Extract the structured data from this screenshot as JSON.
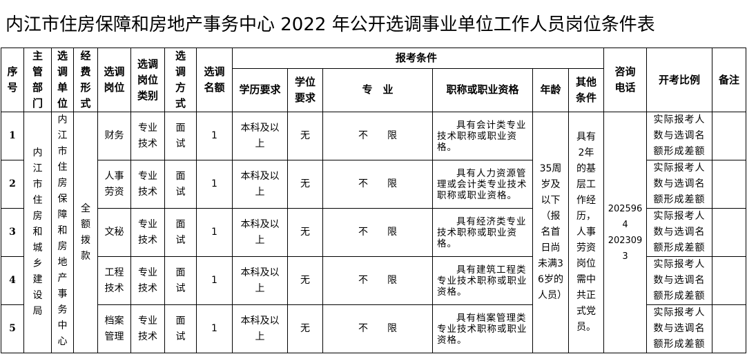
{
  "title": "内江市住房保障和房地产事务中心 2022 年公开选调事业单位工作人员岗位条件表",
  "headers": {
    "seq": "序号",
    "dept": "主管部门",
    "unit": "选调单位",
    "funding": "经费形式",
    "post": "选调岗位",
    "post_type": "选调岗位类别",
    "method": "选调方式",
    "quota": "选调名额",
    "conditions": "报考条件",
    "education": "学历要求",
    "degree": "学位要求",
    "major": "专　业",
    "qualification": "职称或职业资格",
    "age": "年龄",
    "other": "其他条件",
    "phone": "咨询电话",
    "ratio": "开考比例",
    "remarks": "备注"
  },
  "shared": {
    "dept": "内江市住房和城乡建设局",
    "unit": "内江市住房保障和房地产事务中心",
    "funding": "全额拨款",
    "age": "35周岁及以下（报名首日尚未满36岁的人员）",
    "other": "具有2年的基层工作经历，人事劳资岗位需中共正式党员。",
    "phone_lines": [
      "2025964",
      "2023093"
    ]
  },
  "rows": [
    {
      "seq": "1",
      "post": "财务",
      "post_type": "专业技术",
      "method": "面试",
      "quota": "1",
      "education": "本科及以上",
      "degree": "无",
      "major": "不　　限",
      "qualification": "具有会计类专业技术职称或职业资格。",
      "ratio": "实际报考人数与选调名额形成差额",
      "remarks": ""
    },
    {
      "seq": "2",
      "post": "人事劳资",
      "post_type": "专业技术",
      "method": "面试",
      "quota": "1",
      "education": "本科及以上",
      "degree": "无",
      "major": "不　　限",
      "qualification": "具有人力资源管理或会计类专业技术职称或职业资格。",
      "ratio": "实际报考人数与选调名额形成差额",
      "remarks": ""
    },
    {
      "seq": "3",
      "post": "文秘",
      "post_type": "专业技术",
      "method": "面试",
      "quota": "1",
      "education": "本科及以上",
      "degree": "无",
      "major": "不　　限",
      "qualification": "具有经济类专业技术职称或职业资格。",
      "ratio": "实际报考人数与选调名额形成差额",
      "remarks": ""
    },
    {
      "seq": "4",
      "post": "工程技术",
      "post_type": "专业技术",
      "method": "面试",
      "quota": "1",
      "education": "本科及以上",
      "degree": "无",
      "major": "不　　限",
      "qualification": "具有建筑工程类专业技术职称或职业资格。",
      "ratio": "实际报考人数与选调名额形成差额",
      "remarks": ""
    },
    {
      "seq": "5",
      "post": "档案管理",
      "post_type": "专业技术",
      "method": "面试",
      "quota": "1",
      "education": "本科及以上",
      "degree": "无",
      "major": "不　　限",
      "qualification": "具有档案管理类专业技术职称或职业资格。",
      "ratio": "实际报考人数与选调名额形成差额",
      "remarks": ""
    }
  ]
}
